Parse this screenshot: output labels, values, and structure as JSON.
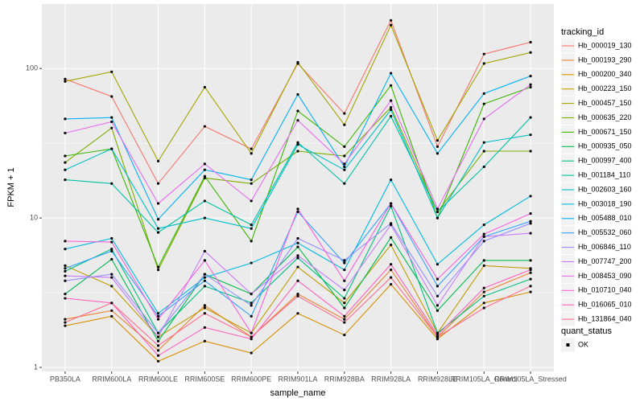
{
  "chart_data": {
    "type": "line",
    "x_label": "sample_name",
    "y_label": "FPKM + 1",
    "log_y": true,
    "grid": true,
    "legend_title": "tracking_id",
    "shape_legend": {
      "title": "quant_status",
      "items": [
        "OK"
      ]
    },
    "categories": [
      "PB350LA",
      "RRIM600LA",
      "RRIM600LE",
      "RRIM600SE",
      "RRIM600PE",
      "RRIM901LA",
      "RRIM928BA",
      "RRIM928LA",
      "RRIM928LE",
      "RRIM105LA_Control",
      "RRIM105LA_Stressed"
    ],
    "ylim": [
      0.94,
      270
    ],
    "yticks": [
      1,
      10,
      100
    ],
    "series": [
      {
        "name": "Hb_000019_130",
        "color": "#F8766D",
        "values": [
          85,
          65,
          17,
          41,
          29,
          108,
          50,
          210,
          30,
          125,
          150
        ]
      },
      {
        "name": "Hb_000193_290",
        "color": "#EA8331",
        "values": [
          2.1,
          2.4,
          1.3,
          2.6,
          1.6,
          3.1,
          2.1,
          4.5,
          1.6,
          3.2,
          4.3
        ]
      },
      {
        "name": "Hb_000200_340",
        "color": "#D89000",
        "values": [
          1.9,
          2.2,
          1.1,
          1.5,
          1.25,
          2.3,
          1.65,
          3.6,
          1.55,
          2.7,
          3.2
        ]
      },
      {
        "name": "Hb_000223_150",
        "color": "#C09B00",
        "values": [
          4.8,
          3.5,
          1.6,
          2.5,
          1.7,
          4.7,
          2.7,
          6.6,
          1.7,
          4.8,
          4.6
        ]
      },
      {
        "name": "Hb_000457_150",
        "color": "#A3A500",
        "values": [
          82,
          95,
          24,
          75,
          27,
          110,
          42,
          195,
          33,
          108,
          128
        ]
      },
      {
        "name": "Hb_000635_220",
        "color": "#7CAE00",
        "values": [
          23.5,
          40,
          4.5,
          18.5,
          17,
          28,
          26,
          55,
          11,
          28,
          28
        ]
      },
      {
        "name": "Hb_000671_150",
        "color": "#39B600",
        "values": [
          26,
          29,
          4.7,
          19,
          7,
          52,
          30,
          77,
          10,
          58,
          75
        ]
      },
      {
        "name": "Hb_000935_050",
        "color": "#00BB4E",
        "values": [
          3.1,
          5.3,
          1.5,
          4.2,
          3.1,
          6.4,
          2.5,
          7.4,
          2.4,
          5.2,
          5.2
        ]
      },
      {
        "name": "Hb_000997_400",
        "color": "#00BF7D",
        "values": [
          4.4,
          6.2,
          1.7,
          3.5,
          2.7,
          5.4,
          2.9,
          12,
          1.7,
          3.0,
          3.9
        ]
      },
      {
        "name": "Hb_001184_110",
        "color": "#00C1A3",
        "values": [
          18,
          17,
          8,
          13,
          9,
          32,
          17,
          48,
          11,
          22,
          47
        ]
      },
      {
        "name": "Hb_002603_160",
        "color": "#00BFC4",
        "values": [
          21,
          29,
          8.5,
          10,
          8.5,
          31,
          21,
          53,
          10,
          32,
          36
        ]
      },
      {
        "name": "Hb_003018_190",
        "color": "#00BAE0",
        "values": [
          6.2,
          7.3,
          2.3,
          4.0,
          5.0,
          6.8,
          4.5,
          18,
          4.9,
          9.0,
          14
        ]
      },
      {
        "name": "Hb_005488_010",
        "color": "#00B0F6",
        "values": [
          46,
          47,
          9.8,
          21,
          18,
          67,
          22,
          93,
          27,
          68,
          89
        ]
      },
      {
        "name": "Hb_005532_060",
        "color": "#35A2FF",
        "values": [
          4.6,
          6.0,
          2.2,
          3.8,
          2.2,
          11,
          5.0,
          12.5,
          3.5,
          7.5,
          9.5
        ]
      },
      {
        "name": "Hb_006846_110",
        "color": "#9590FF",
        "values": [
          3.8,
          4.2,
          1.7,
          4.2,
          2.6,
          7.3,
          5.2,
          9.2,
          3.0,
          7.0,
          9.2
        ]
      },
      {
        "name": "Hb_007747_200",
        "color": "#C77CFF",
        "values": [
          4.1,
          4.0,
          1.6,
          6.0,
          3.1,
          5.6,
          3.3,
          9.0,
          2.6,
          7.5,
          7.9
        ]
      },
      {
        "name": "Hb_008453_090",
        "color": "#E76BF3",
        "values": [
          37,
          44,
          12.5,
          23,
          13,
          45,
          23,
          61,
          11.5,
          46,
          78
        ]
      },
      {
        "name": "Hb_010710_040",
        "color": "#FA62DB",
        "values": [
          7.0,
          6.9,
          2.1,
          5.2,
          1.7,
          11.5,
          3.8,
          12.5,
          3.9,
          7.8,
          10.7
        ]
      },
      {
        "name": "Hb_016065_010",
        "color": "#FF62BC",
        "values": [
          2.9,
          2.7,
          1.2,
          1.85,
          1.55,
          3.8,
          2.2,
          4.9,
          1.65,
          3.4,
          4.5
        ]
      },
      {
        "name": "Hb_131864_040",
        "color": "#FF6C91",
        "values": [
          2.0,
          2.7,
          1.4,
          2.3,
          1.6,
          3.0,
          2.0,
          4.0,
          1.6,
          2.5,
          3.5
        ]
      }
    ]
  }
}
